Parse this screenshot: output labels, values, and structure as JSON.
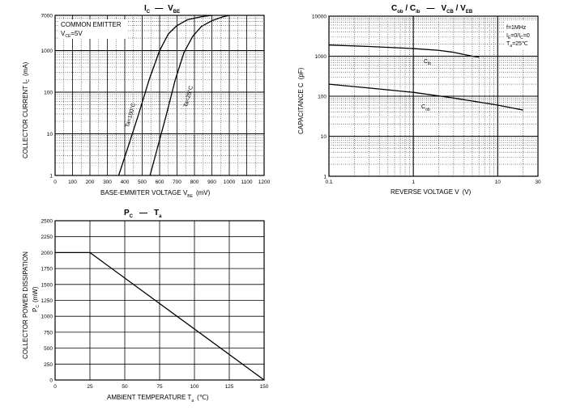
{
  "chart_data": [
    {
      "type": "line",
      "title": {
        "a": "I",
        "a_sub": "C",
        "dash": "—",
        "b": "V",
        "b_sub": "BE"
      },
      "xlabel": {
        "text": "BASE-EMMITER VOLTAGE  V",
        "sub": "BE",
        "unit": "(mV)"
      },
      "ylabel": {
        "text": "COLLECTOR CURRENT   I",
        "sub": "C",
        "unit": "(mA)"
      },
      "x_scale": "linear",
      "y_scale": "log",
      "xlim": [
        0,
        1200
      ],
      "ylim": [
        1,
        7000
      ],
      "x_ticks": [
        "0",
        "100",
        "200",
        "300",
        "400",
        "500",
        "600",
        "700",
        "800",
        "900",
        "1000",
        "1100",
        "1200"
      ],
      "y_ticks": [
        "1",
        "10",
        "100",
        "1000",
        "7000"
      ],
      "grid": true,
      "annotations": {
        "line1": "COMMON EMITTER",
        "line2_a": "V",
        "line2_sub": "CE",
        "line2_b": "=5V"
      },
      "series": [
        {
          "name": "Ta=100°C",
          "x": [
            365,
            420,
            480,
            540,
            600,
            650,
            700,
            760,
            840,
            900
          ],
          "y": [
            1,
            5,
            30,
            200,
            1000,
            2500,
            4000,
            5500,
            6500,
            7000
          ]
        },
        {
          "name": "Ta=25°C",
          "x": [
            545,
            590,
            640,
            690,
            740,
            790,
            840,
            900,
            960,
            1000
          ],
          "y": [
            1,
            5,
            30,
            200,
            900,
            2200,
            3800,
            5200,
            6400,
            7000
          ]
        }
      ]
    },
    {
      "type": "line",
      "title": {
        "a": "C",
        "a_sub": "ob",
        "mid": " / C",
        "mid_sub": "ib",
        "dash": "—",
        "b": "V",
        "b_sub": "CB",
        "c": " / V",
        "c_sub": "EB"
      },
      "xlabel": {
        "text": "REVERSE VOLTAGE   V",
        "unit": "(V)"
      },
      "ylabel": {
        "text": "CAPACITANCE   C",
        "unit": "(pF)"
      },
      "x_scale": "log",
      "y_scale": "log",
      "xlim": [
        0.1,
        30
      ],
      "ylim": [
        1,
        10000
      ],
      "x_ticks": [
        "0.1",
        "1",
        "10",
        "30"
      ],
      "y_ticks": [
        "1",
        "10",
        "100",
        "1000",
        "10000"
      ],
      "grid": true,
      "annotations": {
        "f": "f=1MHz",
        "ie_a": "I",
        "ie_sub": "E",
        "ie_b": "=0/I",
        "ie_sub2": "C",
        "ie_c": "=0",
        "ta_a": "T",
        "ta_sub": "a",
        "ta_b": "=25℃"
      },
      "series": [
        {
          "name": "Cib",
          "label": "C",
          "label_sub": "ib",
          "x": [
            0.1,
            0.3,
            1,
            2,
            3,
            5,
            6
          ],
          "y": [
            1900,
            1750,
            1550,
            1400,
            1250,
            1000,
            950
          ]
        },
        {
          "name": "Cob",
          "label": "C",
          "label_sub": "ob",
          "x": [
            0.1,
            0.3,
            1,
            3,
            10,
            20
          ],
          "y": [
            200,
            160,
            125,
            90,
            60,
            45
          ]
        }
      ]
    },
    {
      "type": "line",
      "title": {
        "a": "P",
        "a_sub": "C",
        "dash": "—",
        "b": "T",
        "b_sub": "a"
      },
      "xlabel": {
        "text": "AMBIENT TEMPERATURE   T",
        "sub": "a",
        "unit": "(℃)"
      },
      "ylabel": {
        "text": "COLLECTOR POWER DISSIPATION",
        "line2_a": "P",
        "line2_sub": "C",
        "line2_unit": "(mW)"
      },
      "x_scale": "linear",
      "y_scale": "linear",
      "xlim": [
        0,
        150
      ],
      "ylim": [
        0,
        2500
      ],
      "x_ticks": [
        "0",
        "25",
        "50",
        "75",
        "100",
        "125",
        "150"
      ],
      "y_ticks": [
        "0",
        "250",
        "500",
        "750",
        "1000",
        "1250",
        "1500",
        "1750",
        "2000",
        "2250",
        "2500"
      ],
      "grid": true,
      "series": [
        {
          "name": "PC",
          "x": [
            0,
            25,
            150
          ],
          "y": [
            2000,
            2000,
            0
          ]
        }
      ]
    }
  ]
}
